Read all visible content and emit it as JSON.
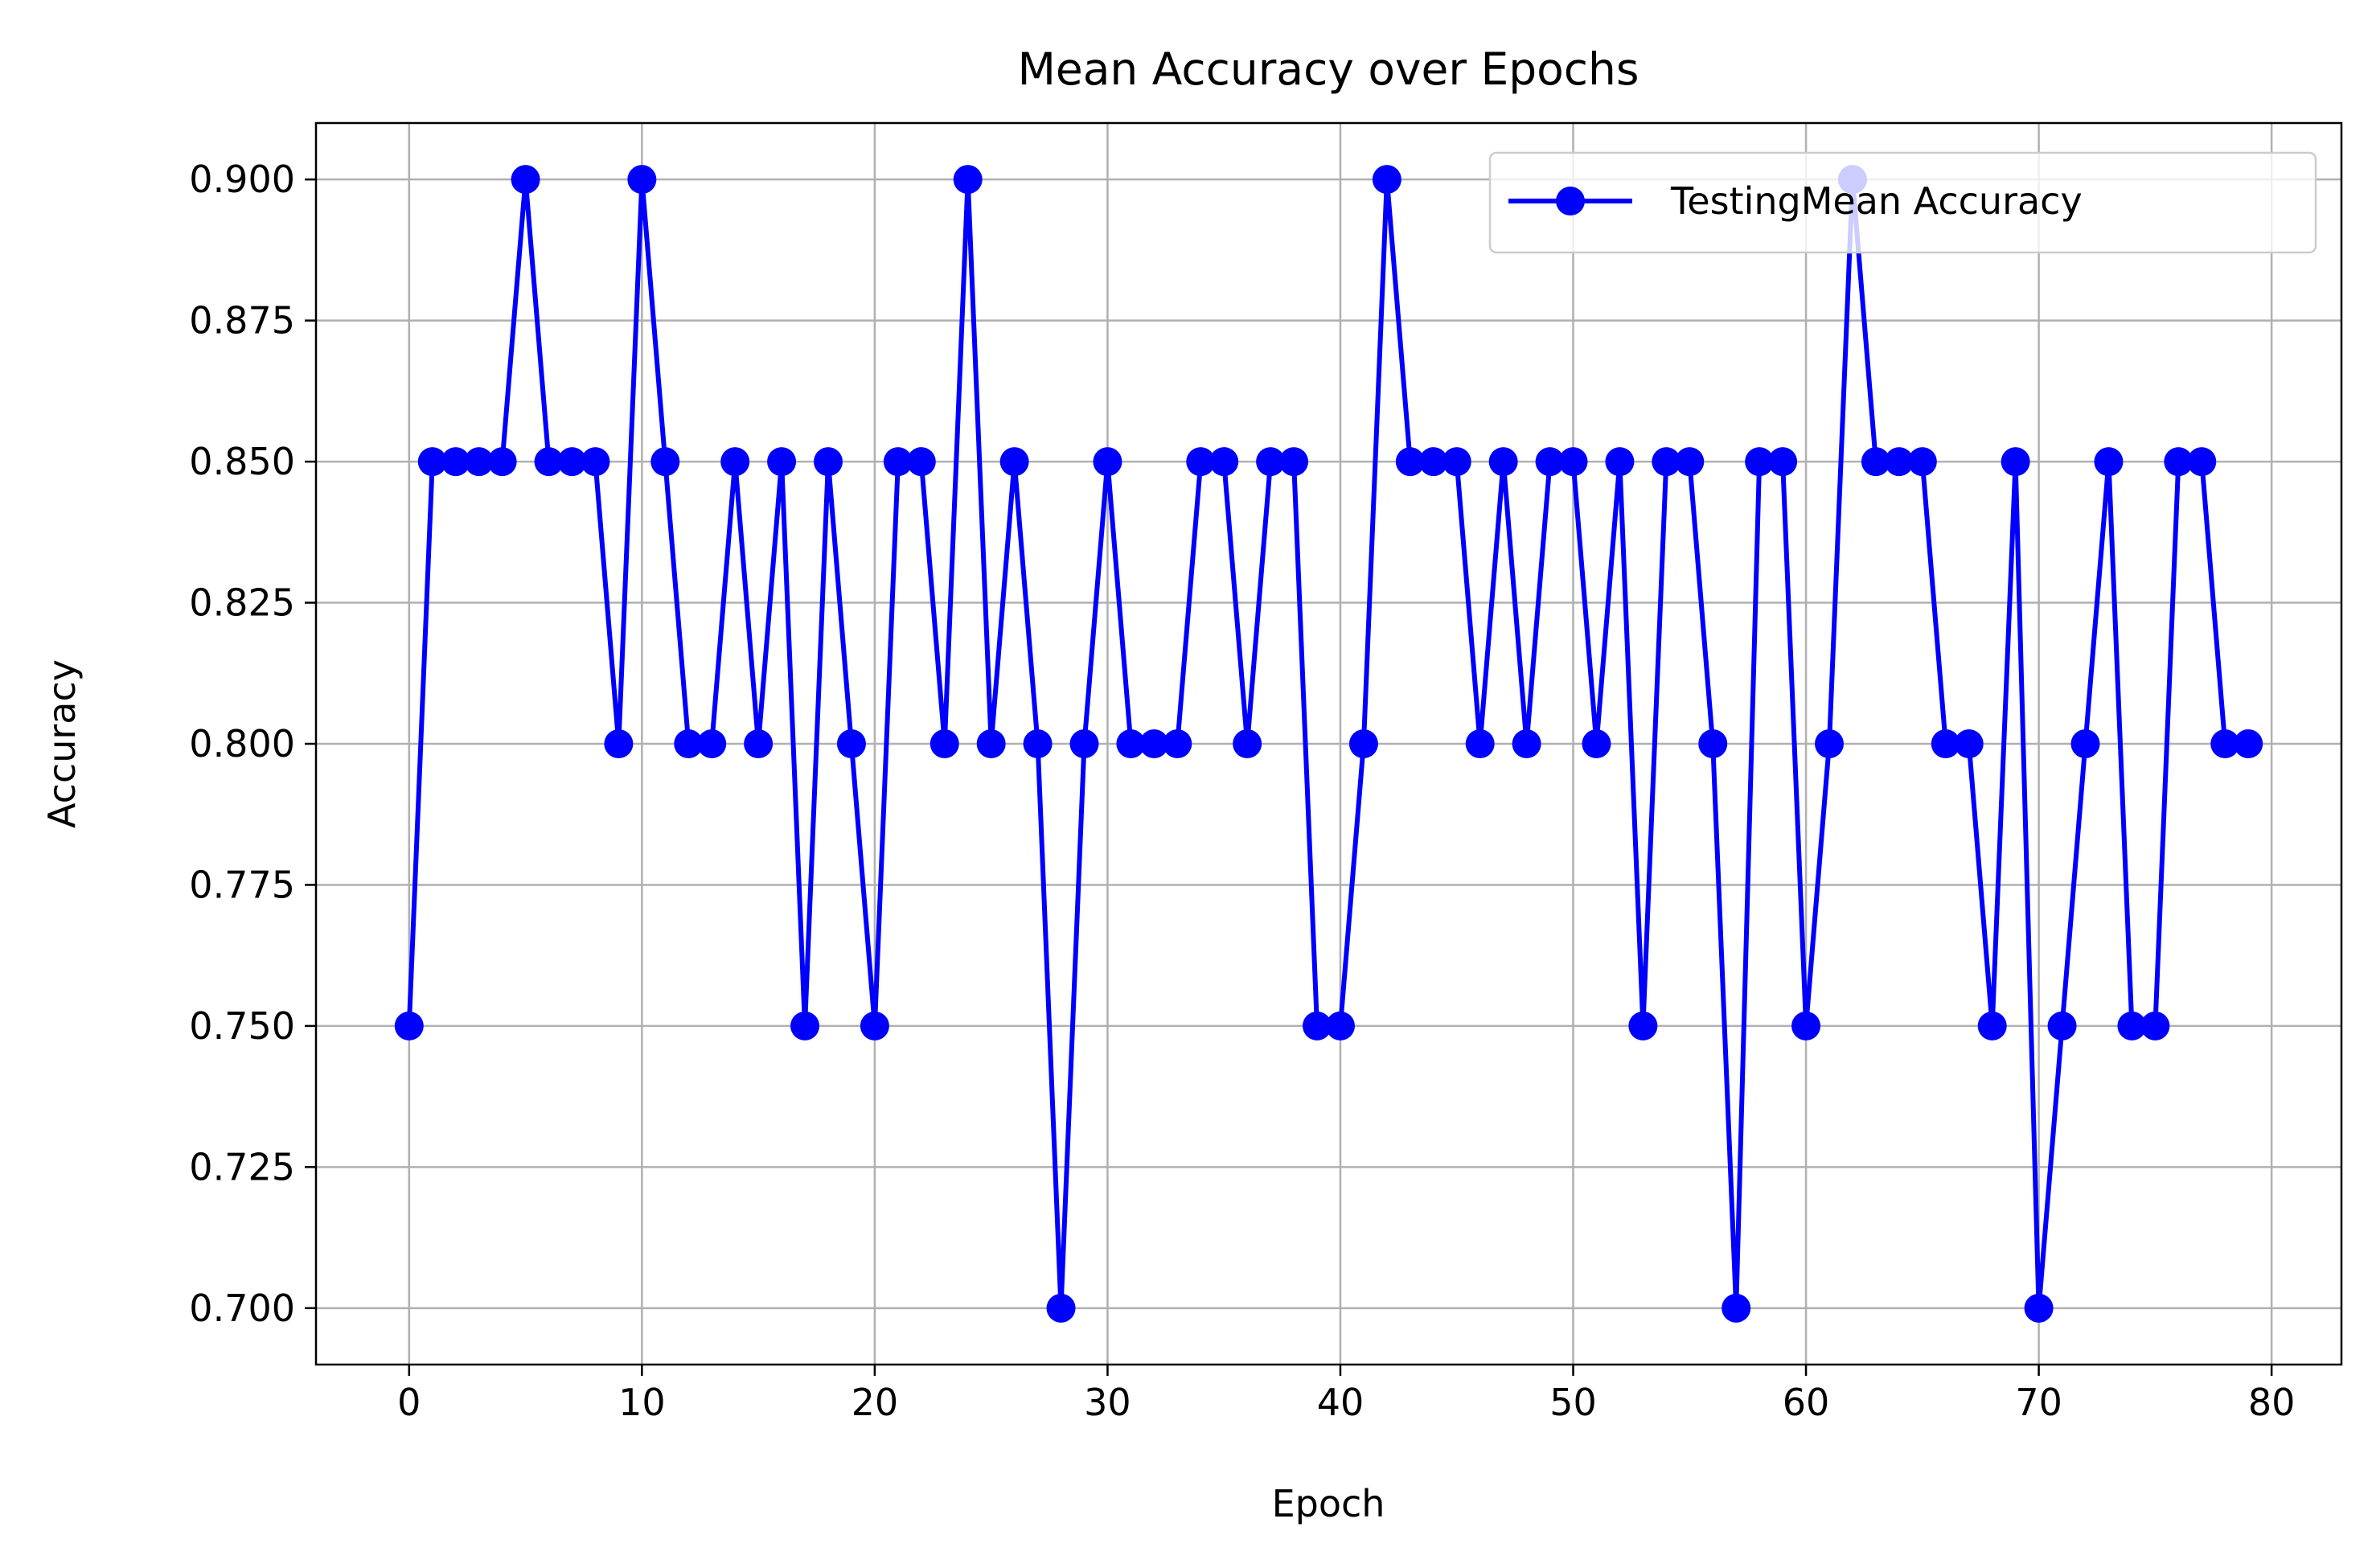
{
  "chart_data": {
    "type": "line",
    "title": "Mean Accuracy over Epochs",
    "xlabel": "Epoch",
    "ylabel": "Accuracy",
    "xlim": [
      -4,
      83
    ],
    "ylim": [
      0.69,
      0.91
    ],
    "x_ticks": [
      0,
      10,
      20,
      30,
      40,
      50,
      60,
      70,
      80
    ],
    "y_ticks": [
      0.7,
      0.725,
      0.75,
      0.775,
      0.8,
      0.825,
      0.85,
      0.875,
      0.9
    ],
    "y_tick_labels": [
      "0.700",
      "0.725",
      "0.750",
      "0.775",
      "0.800",
      "0.825",
      "0.850",
      "0.875",
      "0.900"
    ],
    "grid": true,
    "legend_position": "top-right",
    "series": [
      {
        "name": "TestingMean Accuracy",
        "color": "#0000ff",
        "marker": "circle",
        "x": [
          0,
          1,
          2,
          3,
          4,
          5,
          6,
          7,
          8,
          9,
          10,
          11,
          12,
          13,
          14,
          15,
          16,
          17,
          18,
          19,
          20,
          21,
          22,
          23,
          24,
          25,
          26,
          27,
          28,
          29,
          30,
          31,
          32,
          33,
          34,
          35,
          36,
          37,
          38,
          39,
          40,
          41,
          42,
          43,
          44,
          45,
          46,
          47,
          48,
          49,
          50,
          51,
          52,
          53,
          54,
          55,
          56,
          57,
          58,
          59,
          60,
          61,
          62,
          63,
          64,
          65,
          66,
          67,
          68,
          69,
          70,
          71,
          72,
          73,
          74,
          75,
          76,
          77,
          78,
          79
        ],
        "values": [
          0.75,
          0.85,
          0.85,
          0.85,
          0.85,
          0.9,
          0.85,
          0.85,
          0.85,
          0.8,
          0.9,
          0.85,
          0.8,
          0.8,
          0.85,
          0.8,
          0.85,
          0.75,
          0.85,
          0.8,
          0.75,
          0.85,
          0.85,
          0.8,
          0.9,
          0.8,
          0.85,
          0.8,
          0.7,
          0.8,
          0.85,
          0.8,
          0.8,
          0.8,
          0.85,
          0.85,
          0.8,
          0.85,
          0.85,
          0.75,
          0.75,
          0.8,
          0.9,
          0.85,
          0.85,
          0.85,
          0.8,
          0.85,
          0.8,
          0.85,
          0.85,
          0.8,
          0.85,
          0.75,
          0.85,
          0.85,
          0.8,
          0.7,
          0.85,
          0.85,
          0.75,
          0.8,
          0.9,
          0.85,
          0.85,
          0.85,
          0.8,
          0.8,
          0.75,
          0.85,
          0.7,
          0.75,
          0.8,
          0.85,
          0.75,
          0.75,
          0.85,
          0.85,
          0.8,
          0.8
        ]
      }
    ]
  }
}
